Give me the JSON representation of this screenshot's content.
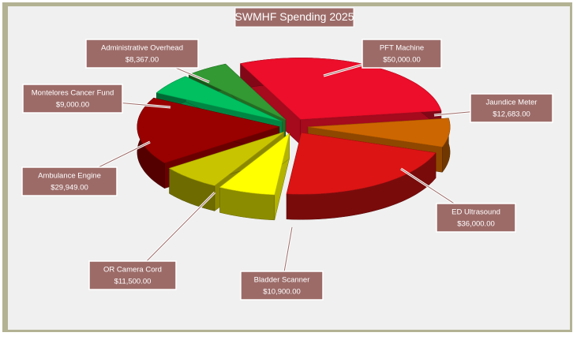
{
  "chart_data": {
    "type": "pie3d",
    "title": "SWMHF Spending 2025",
    "categories": [
      "PFT Machine",
      "Jaundice Meter",
      "ED Ultrasound",
      "Bladder Scanner",
      "OR Camera Cord",
      "Ambulance Engine",
      "Montelores Cancer Fund",
      "Administrative Overhead"
    ],
    "values": [
      50000,
      12683,
      36000,
      10900,
      11500,
      29949,
      9000,
      8367
    ],
    "value_labels": [
      "$50,000.00",
      "$12,683.00",
      "$36,000.00",
      "$10,900.00",
      "$11,500.00",
      "$29,949.00",
      "$9,000.00",
      "$8,367.00"
    ],
    "colors": [
      "#ec0e2a",
      "#cc6600",
      "#dc1414",
      "#ffff00",
      "#c8c400",
      "#990000",
      "#00c060",
      "#339933"
    ]
  }
}
